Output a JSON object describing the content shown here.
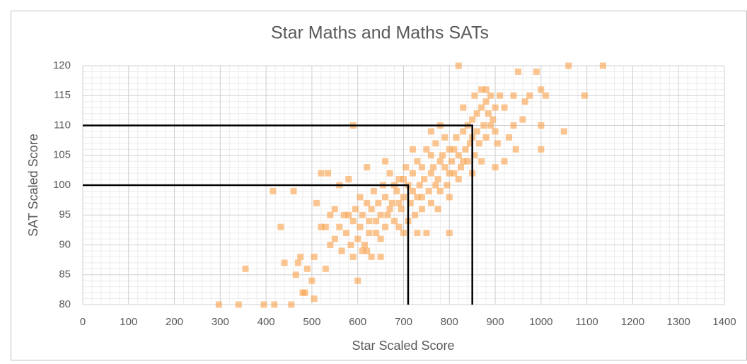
{
  "chart_data": {
    "type": "scatter",
    "title": "Star Maths and Maths SATs",
    "x_label": "Star Scaled Score",
    "y_label": "SAT Scaled Score",
    "xlim": [
      0,
      1400
    ],
    "xticks": [
      0,
      100,
      200,
      300,
      400,
      500,
      600,
      700,
      800,
      900,
      1000,
      1100,
      1200,
      1300,
      1400
    ],
    "ylim": [
      80,
      120
    ],
    "yticks": [
      80,
      85,
      90,
      95,
      100,
      105,
      110,
      115,
      120
    ],
    "grid": true,
    "minor_grid": true,
    "series": [
      {
        "color": "#f9a04a",
        "x": [
          297,
          340,
          355,
          395,
          418,
          415,
          432,
          440,
          455,
          460,
          465,
          470,
          475,
          480,
          485,
          490,
          500,
          505,
          505,
          510,
          520,
          520,
          535,
          530,
          540,
          550,
          560,
          580,
          590,
          600,
          605,
          610,
          620,
          625,
          630,
          640,
          650,
          660,
          670,
          680,
          690,
          700,
          710,
          720,
          730,
          740,
          750,
          760,
          770,
          775,
          780,
          790,
          800,
          800,
          810,
          820,
          830,
          840,
          850,
          860,
          870,
          880,
          890,
          900,
          905,
          910,
          920,
          930,
          940,
          945,
          950,
          960,
          965,
          975,
          990,
          1000,
          1000,
          1000,
          1010,
          1050,
          1060,
          1095,
          1135,
          550,
          560,
          565,
          570,
          575,
          585,
          590,
          595,
          600,
          605,
          610,
          615,
          620,
          625,
          630,
          635,
          640,
          645,
          650,
          655,
          660,
          665,
          670,
          675,
          680,
          685,
          690,
          695,
          700,
          705,
          710,
          715,
          720,
          725,
          730,
          735,
          740,
          745,
          750,
          755,
          760,
          765,
          770,
          775,
          780,
          785,
          790,
          795,
          800,
          805,
          810,
          815,
          820,
          825,
          830,
          835,
          840,
          845,
          850,
          855,
          860,
          865,
          870,
          875,
          880,
          885,
          890,
          895,
          900,
          870,
          880,
          760,
          700,
          650,
          620,
          590,
          580,
          540,
          530,
          660,
          720,
          740,
          690,
          800,
          820,
          850,
          730,
          780,
          760,
          830,
          855,
          900,
          940,
          920
        ],
        "y": [
          80,
          80,
          86,
          80,
          80,
          99,
          93,
          87,
          80,
          99,
          85,
          87,
          88,
          82,
          82,
          86,
          84,
          81,
          88,
          97,
          93,
          102,
          102,
          86,
          90,
          96,
          100,
          101,
          110,
          84,
          98,
          89,
          103,
          94,
          88,
          92,
          95,
          98,
          96,
          100,
          97,
          101,
          94,
          99,
          98,
          103,
          92,
          105,
          100,
          96,
          104,
          108,
          92,
          102,
          106,
          120,
          104,
          110,
          108,
          112,
          116,
          114,
          110,
          113,
          107,
          115,
          113,
          108,
          115,
          106,
          119,
          111,
          114,
          115,
          119,
          116,
          106,
          110,
          115,
          109,
          120,
          115,
          120,
          91,
          93,
          89,
          95,
          92,
          90,
          94,
          96,
          91,
          93,
          95,
          90,
          97,
          92,
          96,
          99,
          94,
          97,
          91,
          100,
          93,
          95,
          102,
          97,
          94,
          99,
          101,
          96,
          98,
          103,
          100,
          97,
          102,
          95,
          104,
          100,
          98,
          101,
          106,
          99,
          102,
          103,
          107,
          101,
          99,
          105,
          103,
          100,
          106,
          104,
          102,
          108,
          105,
          103,
          109,
          106,
          104,
          107,
          111,
          105,
          109,
          107,
          113,
          110,
          108,
          112,
          115,
          111,
          109,
          104,
          116,
          97,
          92,
          88,
          89,
          88,
          95,
          95,
          93,
          104,
          106,
          96,
          93,
          98,
          101,
          102,
          92,
          110,
          109,
          113,
          115,
          103,
          110,
          104
        ]
      }
    ],
    "reference_lines": [
      {
        "x": [
          0,
          710,
          710
        ],
        "y": [
          100,
          100,
          80
        ]
      },
      {
        "x": [
          0,
          850,
          850
        ],
        "y": [
          110,
          110,
          80
        ]
      }
    ]
  }
}
